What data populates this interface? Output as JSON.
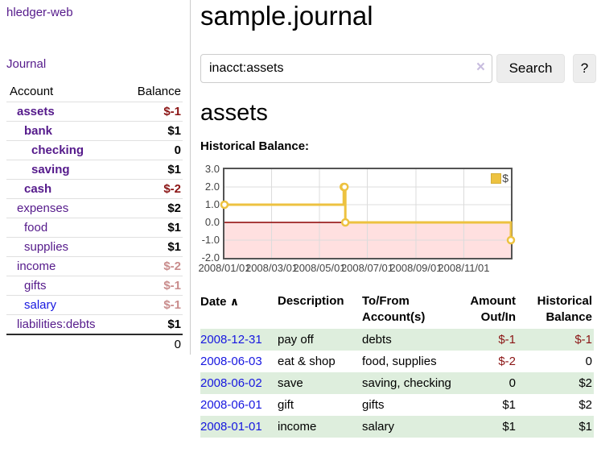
{
  "app": {
    "title": "hledger-web"
  },
  "sidebar": {
    "journal_link": "Journal",
    "accounts": {
      "header_account": "Account",
      "header_balance": "Balance",
      "rows": [
        {
          "name": "assets",
          "indent": 1,
          "bold": true,
          "balance": "$-1",
          "balance_class": "neg"
        },
        {
          "name": "bank",
          "indent": 2,
          "bold": true,
          "balance": "$1",
          "balance_class": ""
        },
        {
          "name": "checking",
          "indent": 3,
          "bold": true,
          "balance": "0",
          "balance_class": ""
        },
        {
          "name": "saving",
          "indent": 3,
          "bold": true,
          "balance": "$1",
          "balance_class": ""
        },
        {
          "name": "cash",
          "indent": 2,
          "bold": true,
          "balance": "$-2",
          "balance_class": "neg"
        },
        {
          "name": "expenses",
          "indent": 1,
          "bold": false,
          "balance": "$2",
          "balance_class": ""
        },
        {
          "name": "food",
          "indent": 2,
          "bold": false,
          "balance": "$1",
          "balance_class": ""
        },
        {
          "name": "supplies",
          "indent": 2,
          "bold": false,
          "balance": "$1",
          "balance_class": ""
        },
        {
          "name": "income",
          "indent": 1,
          "bold": false,
          "balance": "$-2",
          "balance_class": "neg-muted"
        },
        {
          "name": "gifts",
          "indent": 2,
          "bold": false,
          "balance": "$-1",
          "balance_class": "neg-muted"
        },
        {
          "name": "salary",
          "indent": 2,
          "bold": false,
          "link_blue": true,
          "balance": "$-1",
          "balance_class": "neg-muted"
        },
        {
          "name": "liabilities:debts",
          "indent": 1,
          "bold": false,
          "balance": "$1",
          "balance_class": ""
        }
      ],
      "total": "0"
    }
  },
  "main": {
    "title": "sample.journal",
    "search": {
      "value": "inacct:assets",
      "clear_icon": "×",
      "button_label": "Search",
      "help_label": "?"
    },
    "account_heading": "assets",
    "chart_label": "Historical Balance:"
  },
  "chart_data": {
    "type": "line",
    "step": true,
    "title": "Historical Balance",
    "series": [
      {
        "name": "$",
        "color": "#edc240",
        "points": [
          [
            "2008-01-01",
            1
          ],
          [
            "2008-06-01",
            2
          ],
          [
            "2008-06-02",
            2
          ],
          [
            "2008-06-03",
            0
          ],
          [
            "2008-12-31",
            -1
          ]
        ]
      }
    ],
    "xlim": [
      "2008-01-01",
      "2008-12-31"
    ],
    "ylim": [
      -2,
      3
    ],
    "y_ticks": [
      3.0,
      2.0,
      1.0,
      0.0,
      -1.0,
      -2.0
    ],
    "x_ticks": [
      {
        "label": "2008/01/01",
        "date": "2008-01-01"
      },
      {
        "label": "2008/03/01",
        "date": "2008-03-01"
      },
      {
        "label": "2008/05/01",
        "date": "2008-05-01"
      },
      {
        "label": "2008/07/01",
        "date": "2008-07-01"
      },
      {
        "label": "2008/09/01",
        "date": "2008-09-01"
      },
      {
        "label": "2008/11/01",
        "date": "2008-11-01"
      }
    ],
    "grid": true,
    "legend": {
      "label": "$",
      "position": "top-right"
    },
    "colors": {
      "negative_fill": "rgba(255,0,0,0.12)",
      "zero_line": "#8b0000",
      "grid": "#dcdcdc",
      "border": "#545454"
    }
  },
  "register": {
    "headers": {
      "date": "Date",
      "sort_arrow": "∧",
      "description": "Description",
      "accounts": "To/From Account(s)",
      "amount": "Amount Out/In",
      "balance": "Historical Balance"
    },
    "rows": [
      {
        "date": "2008-12-31",
        "description": "pay off",
        "accounts": "debts",
        "amount": "$-1",
        "amount_neg": true,
        "balance": "$-1",
        "balance_neg": true
      },
      {
        "date": "2008-06-03",
        "description": "eat & shop",
        "accounts": "food, supplies",
        "amount": "$-2",
        "amount_neg": true,
        "balance": "0",
        "balance_neg": false
      },
      {
        "date": "2008-06-02",
        "description": "save",
        "accounts": "saving, checking",
        "amount": "0",
        "amount_neg": false,
        "balance": "$2",
        "balance_neg": false
      },
      {
        "date": "2008-06-01",
        "description": "gift",
        "accounts": "gifts",
        "amount": "$1",
        "amount_neg": false,
        "balance": "$2",
        "balance_neg": false
      },
      {
        "date": "2008-01-01",
        "description": "income",
        "accounts": "salary",
        "amount": "$1",
        "amount_neg": false,
        "balance": "$1",
        "balance_neg": false
      }
    ]
  }
}
